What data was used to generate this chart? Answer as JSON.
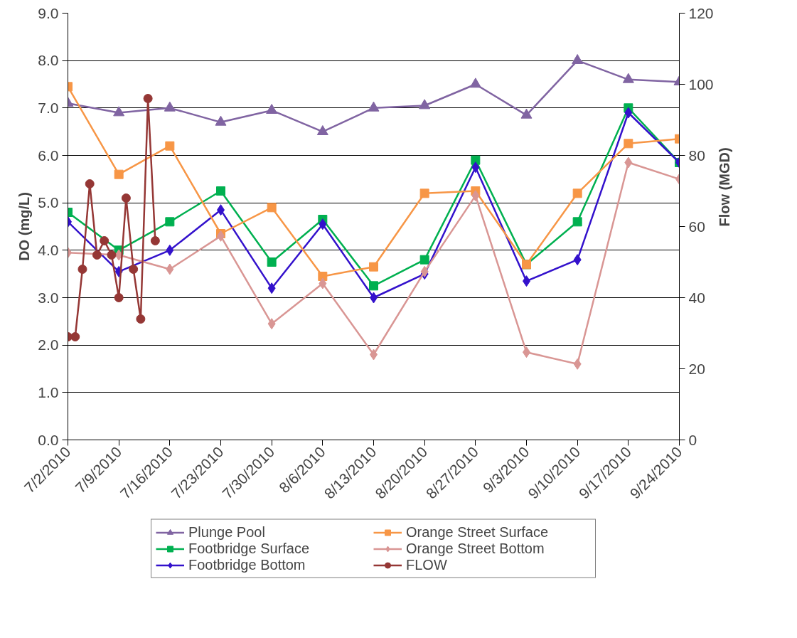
{
  "chart_data": {
    "type": "line",
    "x": [
      "2010-07-02",
      "2010-07-09",
      "2010-07-16",
      "2010-07-23",
      "2010-07-30",
      "2010-08-06",
      "2010-08-13",
      "2010-08-20",
      "2010-08-27",
      "2010-09-03",
      "2010-09-10",
      "2010-09-17",
      "2010-09-24"
    ],
    "ylabel": "DO (mg/L)",
    "y2label": "Flow (MGD)",
    "xlim": [
      "2010-07-02",
      "2010-09-24"
    ],
    "xticks": [
      {
        "value": "2010-07-02",
        "label": "7/2/2010"
      },
      {
        "value": "2010-07-09",
        "label": "7/9/2010"
      },
      {
        "value": "2010-07-16",
        "label": "7/16/2010"
      },
      {
        "value": "2010-07-23",
        "label": "7/23/2010"
      },
      {
        "value": "2010-07-30",
        "label": "7/30/2010"
      },
      {
        "value": "2010-08-06",
        "label": "8/6/2010"
      },
      {
        "value": "2010-08-13",
        "label": "8/13/2010"
      },
      {
        "value": "2010-08-20",
        "label": "8/20/2010"
      },
      {
        "value": "2010-08-27",
        "label": "8/27/2010"
      },
      {
        "value": "2010-09-03",
        "label": "9/3/2010"
      },
      {
        "value": "2010-09-10",
        "label": "9/10/2010"
      },
      {
        "value": "2010-09-17",
        "label": "9/17/2010"
      },
      {
        "value": "2010-09-24",
        "label": "9/24/2010"
      }
    ],
    "ylim": [
      0,
      9
    ],
    "yticks": [
      {
        "value": 0,
        "label": "0.0"
      },
      {
        "value": 1,
        "label": "1.0"
      },
      {
        "value": 2,
        "label": "2.0"
      },
      {
        "value": 3,
        "label": "3.0"
      },
      {
        "value": 4,
        "label": "4.0"
      },
      {
        "value": 5,
        "label": "5.0"
      },
      {
        "value": 6,
        "label": "6.0"
      },
      {
        "value": 7,
        "label": "7.0"
      },
      {
        "value": 8,
        "label": "8.0"
      },
      {
        "value": 9,
        "label": "9.0"
      }
    ],
    "y2lim": [
      0,
      120
    ],
    "y2ticks": [
      0,
      20,
      40,
      60,
      80,
      100,
      120
    ],
    "grid": "y",
    "legend": "bottom",
    "series": [
      {
        "name": "Plunge Pool",
        "color": "#8064a2",
        "marker": "triangle",
        "values": [
          7.1,
          6.9,
          7.0,
          6.7,
          6.95,
          6.5,
          7.0,
          7.05,
          7.5,
          6.85,
          8.0,
          7.6,
          7.55
        ]
      },
      {
        "name": "Footbridge Surface",
        "color": "#00b050",
        "marker": "square",
        "values": [
          4.8,
          4.0,
          4.6,
          5.25,
          3.75,
          4.65,
          3.25,
          3.8,
          5.9,
          3.7,
          4.6,
          7.0,
          5.85
        ]
      },
      {
        "name": "Footbridge Bottom",
        "color": "#3311cc",
        "marker": "diamond",
        "values": [
          4.6,
          3.55,
          4.0,
          4.85,
          3.2,
          4.55,
          3.0,
          3.5,
          5.75,
          3.35,
          3.8,
          6.9,
          5.85
        ]
      },
      {
        "name": "Orange Street Surface",
        "color": "#f79646",
        "marker": "square",
        "values": [
          7.45,
          5.6,
          6.2,
          4.35,
          4.9,
          3.45,
          3.65,
          5.2,
          5.25,
          3.7,
          5.2,
          6.25,
          6.35
        ]
      },
      {
        "name": "Orange Street Bottom",
        "color": "#d99694",
        "marker": "diamond",
        "values": [
          3.95,
          3.9,
          3.6,
          4.3,
          2.45,
          3.3,
          1.8,
          3.55,
          5.15,
          1.85,
          1.6,
          5.85,
          5.5
        ]
      },
      {
        "name": "FLOW",
        "color": "#953735",
        "marker": "circle",
        "axis": "y2",
        "x": [
          "2010-07-02",
          "2010-07-03",
          "2010-07-04",
          "2010-07-05",
          "2010-07-06",
          "2010-07-07",
          "2010-07-08",
          "2010-07-09",
          "2010-07-10",
          "2010-07-11",
          "2010-07-12",
          "2010-07-13",
          "2010-07-14"
        ],
        "values": [
          29,
          29,
          48,
          72,
          52,
          56,
          52,
          40,
          68,
          48,
          34,
          96,
          56
        ]
      }
    ]
  }
}
